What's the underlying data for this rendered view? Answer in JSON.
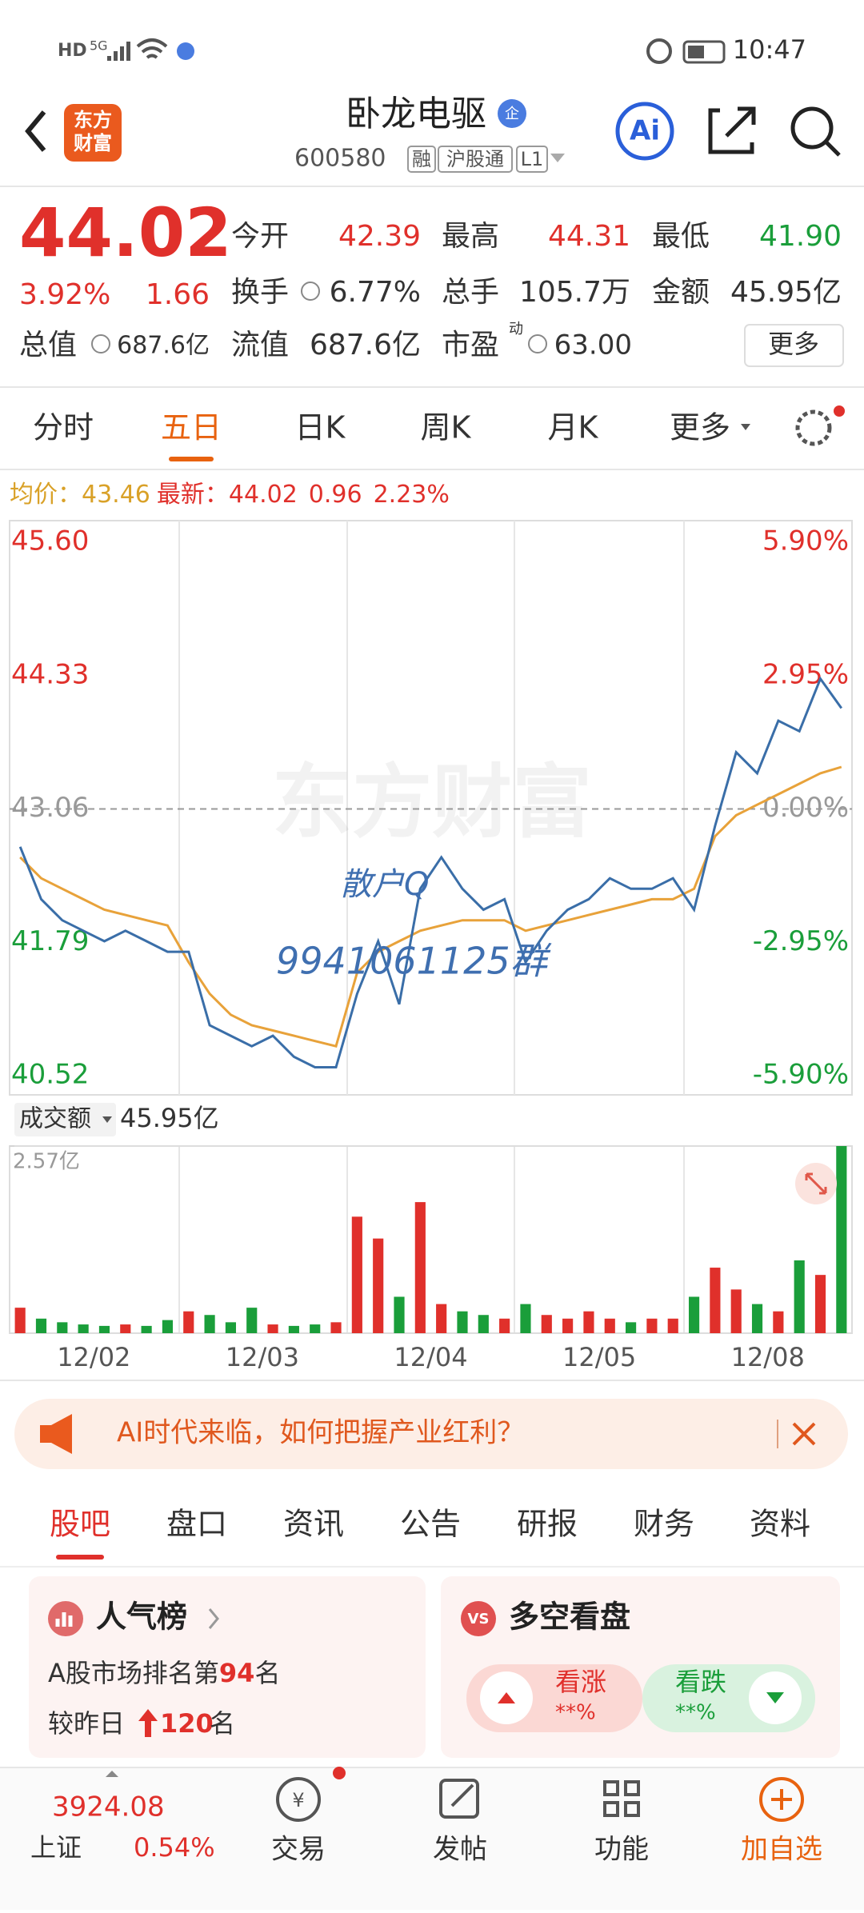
{
  "status_bar": {
    "hd": "HD",
    "network": "5G",
    "time": "10:47"
  },
  "header": {
    "logo": [
      "东方",
      "财富"
    ],
    "title": "卧龙电驱",
    "badge": "企",
    "code": "600580",
    "tags": [
      "融",
      "沪股通",
      "L1"
    ],
    "ai": "Ai"
  },
  "quote": {
    "price": "44.02",
    "change_pct": "3.92%",
    "change": "1.66",
    "grid": [
      [
        {
          "label": "今开",
          "value": "42.39",
          "tone": "up"
        },
        {
          "label": "最高",
          "value": "44.31",
          "tone": "up"
        },
        {
          "label": "最低",
          "value": "41.90",
          "tone": "down"
        }
      ],
      [
        {
          "label": "换手",
          "value": "6.77%",
          "tone": "flat"
        },
        {
          "label": "总手",
          "value": "105.7万",
          "tone": "flat"
        },
        {
          "label": "金额",
          "value": "45.95亿",
          "tone": "flat"
        }
      ]
    ],
    "total_value": {
      "label": "总值",
      "value": "687.6亿"
    },
    "float_value": {
      "label": "流值",
      "value": "687.6亿"
    },
    "pe": {
      "label": "市盈",
      "sup": "动",
      "value": "63.00"
    },
    "more": "更多"
  },
  "tabs": {
    "items": [
      "分时",
      "五日",
      "日K",
      "周K",
      "月K",
      "更多"
    ],
    "active": 1
  },
  "chart_data": {
    "type": "line",
    "change": "0.96",
    "change_pct": "2.23%",
    "watermark": "东方财富",
    "annotations": [
      "散户Q",
      "9941061125群"
    ],
    "categories": [
      null,
      null,
      null,
      null,
      "12/02",
      null,
      null,
      null,
      null,
      null,
      null,
      null,
      "12/03",
      null,
      null,
      null,
      null,
      null,
      null,
      null,
      "12/04",
      null,
      null,
      null,
      null,
      null,
      null,
      null,
      "12/05",
      null,
      null,
      null,
      null,
      null,
      null,
      null,
      "12/08",
      null,
      null,
      null
    ],
    "series": [
      {
        "name": "最新：",
        "color": "#3a6ea8",
        "values": [
          42.7,
          42.2,
          42.0,
          41.9,
          41.8,
          41.9,
          41.8,
          41.7,
          41.7,
          41.0,
          40.9,
          40.8,
          40.9,
          40.7,
          40.6,
          40.6,
          41.3,
          41.8,
          41.2,
          42.3,
          42.6,
          42.3,
          42.1,
          42.2,
          41.6,
          41.9,
          42.1,
          42.2,
          42.4,
          42.3,
          42.3,
          42.4,
          42.1,
          42.9,
          43.6,
          43.4,
          43.9,
          43.8,
          44.3,
          44.02
        ]
      },
      {
        "name": "均价：",
        "color": "#e8a23a",
        "values": [
          42.6,
          42.4,
          42.3,
          42.2,
          42.1,
          42.05,
          42.0,
          41.95,
          41.6,
          41.3,
          41.1,
          41.0,
          40.95,
          40.9,
          40.85,
          40.8,
          41.5,
          41.7,
          41.8,
          41.9,
          41.95,
          42.0,
          42.0,
          42.0,
          41.9,
          41.95,
          42.0,
          42.05,
          42.1,
          42.15,
          42.2,
          42.2,
          42.3,
          42.8,
          43.0,
          43.1,
          43.2,
          43.3,
          43.4,
          43.46
        ]
      }
    ],
    "ylim": [
      40.52,
      45.6
    ],
    "yticks": [
      {
        "value": 45.6,
        "label": "45.60"
      },
      44.33,
      43.06,
      41.79,
      40.52
    ],
    "y2lim": [
      -5.9,
      5.9
    ],
    "y2ticks": [
      {
        "value": 5.9,
        "label": "5.90%"
      },
      {
        "value": 2.95,
        "label": "2.95%"
      },
      {
        "value": 0,
        "label": "0.00%"
      },
      {
        "value": -2.95,
        "label": "-2.95%"
      },
      {
        "value": -5.9,
        "label": "-5.90%"
      }
    ],
    "up_color": "#e0302b",
    "down_color": "#1a9e3a",
    "volume": {
      "label": "成交额",
      "total": "45.95亿",
      "ylim": [
        0,
        2.57
      ],
      "yticks": [
        {
          "value": 2.57,
          "label": "2.57亿"
        }
      ],
      "values": [
        0.35,
        0.2,
        0.15,
        0.12,
        0.1,
        0.12,
        0.1,
        0.18,
        0.3,
        0.25,
        0.15,
        0.35,
        0.12,
        0.1,
        0.12,
        0.15,
        1.6,
        1.3,
        0.5,
        1.8,
        0.4,
        0.3,
        0.25,
        0.2,
        0.4,
        0.25,
        0.2,
        0.3,
        0.2,
        0.15,
        0.2,
        0.2,
        0.5,
        0.9,
        0.6,
        0.4,
        0.3,
        1.0,
        0.8,
        2.57
      ]
    }
  },
  "banner": {
    "text": "AI时代来临，如何把握产业红利？"
  },
  "bottom_tabs": {
    "items": [
      "股吧",
      "盘口",
      "资讯",
      "公告",
      "研报",
      "财务",
      "资料"
    ],
    "active": 0
  },
  "cards": {
    "popularity": {
      "title": "人气榜",
      "rank_prefix": "A股市场排名第",
      "rank": "94",
      "rank_suffix": "名",
      "change_prefix": "较昨日",
      "change": "120",
      "change_suffix": "名"
    },
    "sentiment": {
      "title": "多空看盘",
      "bull": "看涨",
      "bull_pct": "**%",
      "bear": "看跌",
      "bear_pct": "**%"
    }
  },
  "nav": {
    "index_value": "3924.08",
    "index_name": "上证",
    "index_pct": "0.54%",
    "items": [
      "交易",
      "发帖",
      "功能",
      "加自选"
    ]
  }
}
